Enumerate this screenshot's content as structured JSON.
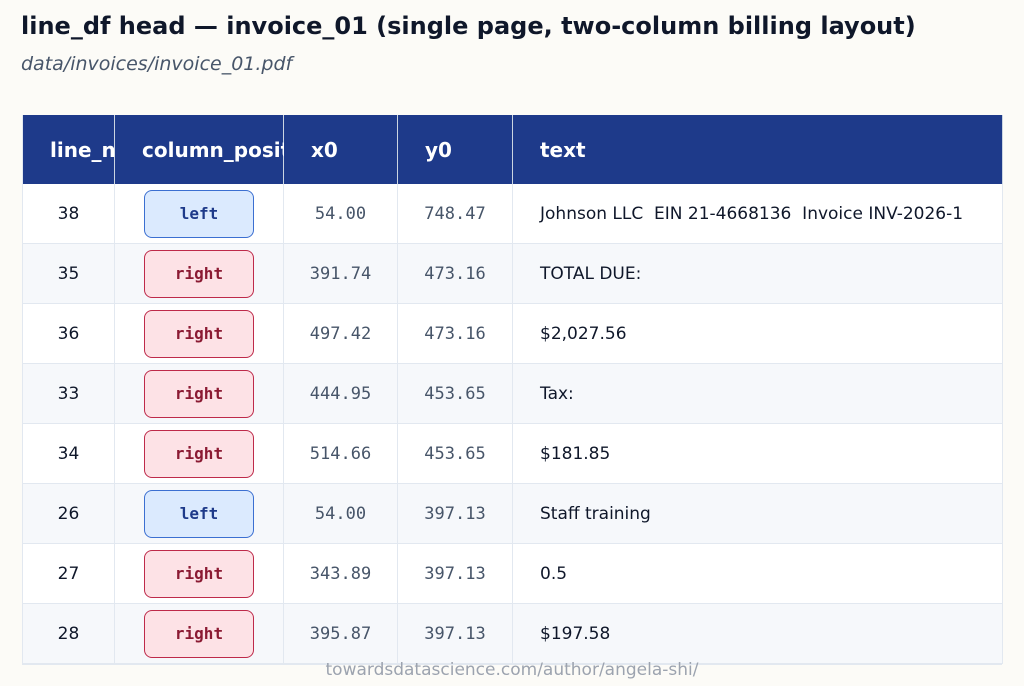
{
  "header": {
    "title": "line_df head — invoice_01 (single page, two-column billing layout)",
    "subtitle": "data/invoices/invoice_01.pdf"
  },
  "table": {
    "columns": [
      "line_num",
      "column_position",
      "x0",
      "y0",
      "text"
    ],
    "rows": [
      [
        "38",
        "left",
        "54.00",
        "748.47",
        "Johnson LLC  EIN 21-4668136  Invoice INV-2026-1"
      ],
      [
        "35",
        "right",
        "391.74",
        "473.16",
        "TOTAL DUE:"
      ],
      [
        "36",
        "right",
        "497.42",
        "473.16",
        "$2,027.56"
      ],
      [
        "33",
        "right",
        "444.95",
        "453.65",
        "Tax:"
      ],
      [
        "34",
        "right",
        "514.66",
        "453.65",
        "$181.85"
      ],
      [
        "26",
        "left",
        "54.00",
        "397.13",
        "Staff training"
      ],
      [
        "27",
        "right",
        "343.89",
        "397.13",
        "0.5"
      ],
      [
        "28",
        "right",
        "395.87",
        "397.13",
        "$197.58"
      ]
    ]
  },
  "footer": "towardsdatascience.com/author/angela-shi/"
}
